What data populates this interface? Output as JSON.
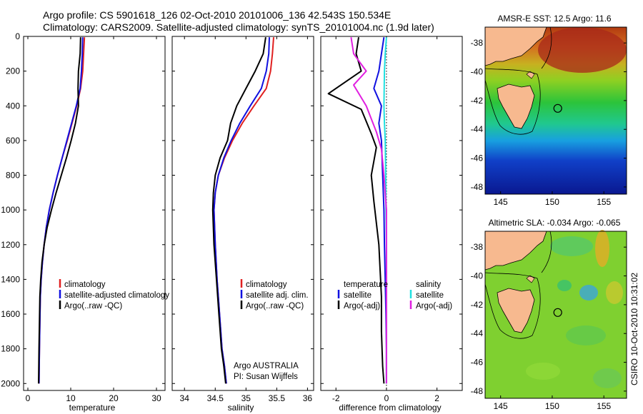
{
  "header": {
    "line1": "Argo profile: CS 5901618_126 02-Oct-2010 20101006_136 42.543S 150.534E",
    "line2": "Climatology: CARS2009. Satellite-adjusted climatology: synTS_20101004.nc (1.9d later)"
  },
  "colors": {
    "red": "#e02020",
    "blue": "#1010e0",
    "black": "#000000",
    "cyan": "#20e0e0",
    "magenta": "#e020e0"
  },
  "chart_data": [
    {
      "type": "line",
      "xlabel": "temperature",
      "xlim": [
        -1,
        32
      ],
      "ylim": [
        2040,
        0
      ],
      "xticks": [
        0,
        10,
        20,
        30
      ],
      "yticks": [
        0,
        200,
        400,
        600,
        800,
        1000,
        1200,
        1400,
        1600,
        1800,
        2000
      ],
      "y_reversed": true,
      "legend": [
        "climatology",
        "satellite-adjusted climatology",
        "Argo(..raw -QC)"
      ],
      "series": [
        {
          "name": "climatology",
          "color": "red",
          "x": [
            13.2,
            13.0,
            12.8,
            12.3,
            11.4,
            10.3,
            9.2,
            8.0,
            6.9,
            5.9,
            5.0,
            4.3,
            3.8,
            3.4,
            3.1,
            2.9,
            2.7,
            2.6
          ],
          "y": [
            5,
            100,
            200,
            300,
            400,
            500,
            600,
            700,
            800,
            900,
            1000,
            1100,
            1200,
            1300,
            1400,
            1500,
            1800,
            2000
          ]
        },
        {
          "name": "satellite-adjusted climatology",
          "color": "blue",
          "x": [
            12.8,
            12.7,
            12.5,
            12.2,
            11.3,
            10.2,
            9.1,
            8.0,
            6.9,
            5.9,
            5.0,
            4.3,
            3.8,
            3.4,
            3.1,
            2.9,
            2.7,
            2.6
          ],
          "y": [
            5,
            100,
            200,
            300,
            400,
            500,
            600,
            700,
            800,
            900,
            1000,
            1100,
            1200,
            1300,
            1400,
            1500,
            1800,
            2000
          ]
        },
        {
          "name": "Argo(..raw -QC)",
          "color": "black",
          "x": [
            12.3,
            12.2,
            11.8,
            11.7,
            11.8,
            11.1,
            10.1,
            9.0,
            7.8,
            6.6,
            5.5,
            4.5,
            3.8,
            3.3,
            3.0,
            2.8,
            2.6,
            2.5
          ],
          "y": [
            5,
            100,
            200,
            300,
            400,
            500,
            600,
            700,
            800,
            900,
            1000,
            1100,
            1200,
            1300,
            1400,
            1500,
            1800,
            2000
          ]
        }
      ]
    },
    {
      "type": "line",
      "xlabel": "salinity",
      "xlim": [
        33.8,
        36.1
      ],
      "ylim": [
        2040,
        0
      ],
      "xticks": [
        34,
        34.5,
        35,
        35.5,
        36
      ],
      "y_reversed": true,
      "legend": [
        "climatology",
        "satellite adj. clim.",
        "Argo(..raw -QC)"
      ],
      "annotation": [
        "Argo AUSTRALIA",
        "PI: Susan Wijffels"
      ],
      "series": [
        {
          "name": "climatology",
          "color": "red",
          "x": [
            35.45,
            35.43,
            35.4,
            35.33,
            35.13,
            34.94,
            34.78,
            34.65,
            34.55,
            34.5,
            34.48,
            34.5,
            34.53,
            34.57,
            34.61,
            34.65,
            34.68
          ],
          "y": [
            5,
            100,
            200,
            300,
            400,
            500,
            600,
            700,
            800,
            900,
            1000,
            1200,
            1400,
            1600,
            1800,
            1900,
            2000
          ]
        },
        {
          "name": "satellite adj. clim.",
          "color": "blue",
          "x": [
            35.38,
            35.37,
            35.33,
            35.25,
            35.07,
            34.9,
            34.76,
            34.64,
            34.55,
            34.5,
            34.48,
            34.5,
            34.53,
            34.57,
            34.61,
            34.65,
            34.68
          ],
          "y": [
            5,
            100,
            200,
            300,
            400,
            500,
            600,
            700,
            800,
            900,
            1000,
            1200,
            1400,
            1600,
            1800,
            1900,
            2000
          ]
        },
        {
          "name": "Argo(..raw -QC)",
          "color": "black",
          "x": [
            35.32,
            35.28,
            35.15,
            35.0,
            34.85,
            34.75,
            34.7,
            34.58,
            34.5,
            34.47,
            34.46,
            34.48,
            34.52,
            34.56,
            34.6,
            34.64,
            34.67
          ],
          "y": [
            5,
            100,
            200,
            300,
            400,
            500,
            600,
            700,
            800,
            900,
            1000,
            1200,
            1400,
            1600,
            1800,
            1900,
            2000
          ]
        }
      ]
    },
    {
      "type": "line",
      "xlabel": "difference from climatology",
      "xlim": [
        -2.6,
        3.0
      ],
      "ylim": [
        2040,
        0
      ],
      "xticks": [
        -2,
        0,
        2
      ],
      "y_reversed": true,
      "legend_temperature": {
        "title": "temperature",
        "items": [
          "satellite",
          "Argo(-adj)"
        ]
      },
      "legend_salinity": {
        "title": "salinity",
        "items": [
          "satellite",
          "Argo(-adj)"
        ]
      },
      "series": [
        {
          "name": "temperature satellite",
          "color": "blue",
          "x": [
            -0.1,
            -0.2,
            -0.3,
            -0.5,
            -0.2,
            -0.3,
            -0.2,
            -0.15,
            -0.1,
            -0.08,
            -0.05,
            -0.02,
            0.0,
            0.0
          ],
          "y": [
            5,
            100,
            200,
            300,
            400,
            500,
            600,
            800,
            1000,
            1200,
            1400,
            1600,
            1800,
            2000
          ]
        },
        {
          "name": "temperature Argo(-adj)",
          "color": "black",
          "x": [
            -1.1,
            -1.2,
            -1.0,
            -2.3,
            -1.0,
            -0.6,
            -0.4,
            -0.6,
            -0.5,
            -0.3,
            -0.2,
            -0.2,
            -0.15,
            -0.1
          ],
          "y": [
            5,
            100,
            200,
            330,
            420,
            560,
            640,
            800,
            950,
            1200,
            1500,
            1700,
            1900,
            2000
          ]
        },
        {
          "name": "salinity satellite",
          "color": "cyan",
          "x": [
            0.0,
            -0.05,
            -0.08,
            -0.1,
            -0.08,
            -0.05,
            -0.03,
            -0.02,
            0.0,
            0.0,
            0.0,
            0.0
          ],
          "y": [
            5,
            100,
            200,
            400,
            500,
            600,
            800,
            1000,
            1200,
            1400,
            1800,
            2000
          ]
        },
        {
          "name": "salinity Argo(-adj)",
          "color": "magenta",
          "x": [
            -1.4,
            -1.3,
            -0.8,
            -1.3,
            -0.8,
            -0.4,
            -0.2,
            -0.1,
            0.0,
            0.0,
            0.0
          ],
          "y": [
            5,
            100,
            200,
            280,
            400,
            550,
            650,
            800,
            1000,
            1400,
            2000
          ]
        }
      ]
    },
    {
      "type": "heatmap",
      "title": "AMSR-E SST: 12.5 Argo: 11.6",
      "xlim": [
        143.5,
        157.2
      ],
      "ylim": [
        -48.5,
        -36.9
      ],
      "xticks": [
        145,
        150,
        155
      ],
      "yticks": [
        -38,
        -40,
        -42,
        -44,
        -46,
        -48
      ],
      "marker": {
        "lon": 150.534,
        "lat": -42.543
      }
    },
    {
      "type": "heatmap",
      "title": "Altimetric SLA: -0.034 Argo: -0.065",
      "xlim": [
        143.5,
        157.2
      ],
      "ylim": [
        -48.5,
        -36.9
      ],
      "xticks": [
        145,
        150,
        155
      ],
      "yticks": [
        -38,
        -40,
        -42,
        -44,
        -46,
        -48
      ],
      "marker": {
        "lon": 150.534,
        "lat": -42.543
      }
    }
  ],
  "side_label": "CSIRO 10-Oct-2010 10:31:02"
}
